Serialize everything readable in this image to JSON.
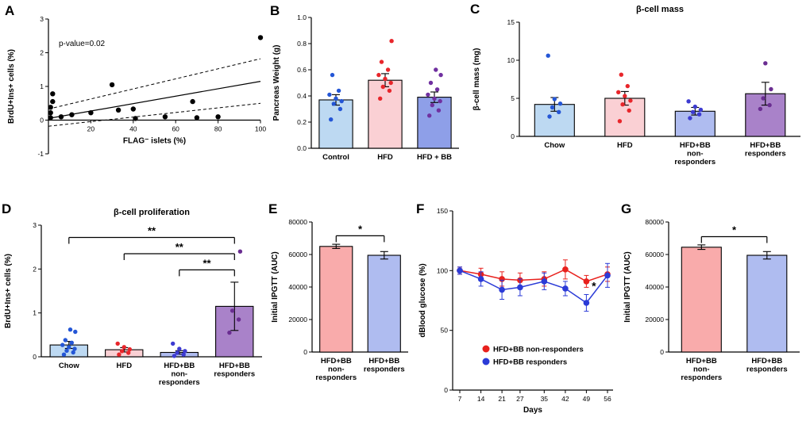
{
  "chart_data": [
    {
      "panel": "A",
      "type": "scatter",
      "xlabel": "FLAG⁻ islets (%)",
      "ylabel": "BrdU+Ins+ cells (%)",
      "annotation": "p-value=0.02",
      "xlim": [
        0,
        100
      ],
      "ylim": [
        -1,
        3
      ],
      "xticks": [
        20,
        40,
        60,
        80,
        100
      ],
      "xtick_labels": [
        "20",
        "40",
        "60",
        "80",
        "100"
      ],
      "yticks": [
        -1,
        0,
        1,
        2,
        3
      ],
      "ytick_labels": [
        "-1",
        "0",
        "1",
        "2",
        "3"
      ],
      "points": [
        [
          1,
          0.07
        ],
        [
          1,
          0.22
        ],
        [
          1,
          0.38
        ],
        [
          2,
          0.55
        ],
        [
          2,
          0.78
        ],
        [
          6,
          0.1
        ],
        [
          11,
          0.16
        ],
        [
          20,
          0.22
        ],
        [
          30,
          1.05
        ],
        [
          33,
          0.3
        ],
        [
          40,
          0.33
        ],
        [
          41,
          0.05
        ],
        [
          55,
          0.1
        ],
        [
          68,
          0.55
        ],
        [
          70,
          0.07
        ],
        [
          80,
          0.1
        ],
        [
          100,
          2.45
        ]
      ],
      "regression": {
        "x": [
          0,
          100
        ],
        "y": [
          0.05,
          1.15
        ]
      },
      "ci_upper": {
        "x": [
          0,
          100
        ],
        "y": [
          0.33,
          1.82
        ]
      },
      "ci_lower": {
        "x": [
          0,
          100
        ],
        "y": [
          -0.18,
          0.5
        ]
      }
    },
    {
      "panel": "B",
      "type": "bar",
      "ylabel": "Pancreas Weight (g)",
      "ylim": [
        0,
        1.0
      ],
      "yticks": [
        0,
        0.2,
        0.4,
        0.6,
        0.8,
        1.0
      ],
      "ytick_labels": [
        "0.0",
        "0.2",
        "0.4",
        "0.6",
        "0.8",
        "1.0"
      ],
      "categories": [
        [
          "Control"
        ],
        [
          "HFD"
        ],
        [
          "HFD + BB"
        ]
      ],
      "values": [
        0.37,
        0.52,
        0.39
      ],
      "errors": [
        0.04,
        0.05,
        0.04
      ],
      "bar_colors": [
        "#BDD9F2",
        "#FAD0D4",
        "#8E9FE8"
      ],
      "dot_colors": [
        "#2456D6",
        "#E8262B",
        "#7030A0"
      ],
      "scatter": [
        [
          0.22,
          0.3,
          0.34,
          0.36,
          0.38,
          0.41,
          0.44,
          0.56
        ],
        [
          0.38,
          0.44,
          0.47,
          0.5,
          0.53,
          0.56,
          0.6,
          0.66,
          0.82
        ],
        [
          0.25,
          0.29,
          0.33,
          0.36,
          0.38,
          0.41,
          0.45,
          0.5,
          0.56,
          0.6
        ]
      ]
    },
    {
      "panel": "C",
      "type": "bar",
      "title": "β-cell mass",
      "ylabel": "β-cell mass (mg)",
      "ylim": [
        0,
        15
      ],
      "yticks": [
        0,
        5,
        10,
        15
      ],
      "ytick_labels": [
        "0",
        "5",
        "10",
        "15"
      ],
      "categories": [
        [
          "Chow"
        ],
        [
          "HFD"
        ],
        [
          "HFD+BB",
          "non-",
          "responders"
        ],
        [
          "HFD+BB",
          "responders"
        ]
      ],
      "values": [
        4.2,
        5.0,
        3.3,
        5.6
      ],
      "errors": [
        0.9,
        0.9,
        0.5,
        1.5
      ],
      "bar_colors": [
        "#BDD9F2",
        "#FAD0D4",
        "#AFBCF0",
        "#A982C9"
      ],
      "dot_colors": [
        "#2456D6",
        "#E8262B",
        "#3D3BD1",
        "#6A2D91"
      ],
      "scatter": [
        [
          2.6,
          3.2,
          3.8,
          4.3,
          4.9,
          10.6
        ],
        [
          2.0,
          3.4,
          4.2,
          4.7,
          5.3,
          5.8,
          6.6,
          8.1
        ],
        [
          2.4,
          2.9,
          3.2,
          3.5,
          3.9,
          4.6
        ],
        [
          3.6,
          4.1,
          5.0,
          6.2,
          9.6
        ]
      ]
    },
    {
      "panel": "D",
      "type": "bar",
      "title": "β-cell proliferation",
      "ylabel": "BrdU+Ins+ cells (%)",
      "ylim": [
        0,
        3
      ],
      "yticks": [
        0,
        1,
        2,
        3
      ],
      "ytick_labels": [
        "0",
        "1",
        "2",
        "3"
      ],
      "categories": [
        [
          "Chow"
        ],
        [
          "HFD"
        ],
        [
          "HFD+BB",
          "non-",
          "responders"
        ],
        [
          "HFD+BB",
          "responders"
        ]
      ],
      "values": [
        0.27,
        0.16,
        0.1,
        1.15
      ],
      "errors": [
        0.08,
        0.05,
        0.04,
        0.55
      ],
      "bar_colors": [
        "#BDD9F2",
        "#FAD0D4",
        "#AFBCF0",
        "#A982C9"
      ],
      "dot_colors": [
        "#2456D6",
        "#E8262B",
        "#3D3BD1",
        "#6A2D91"
      ],
      "scatter": [
        [
          0.05,
          0.1,
          0.14,
          0.18,
          0.22,
          0.27,
          0.32,
          0.38,
          0.57,
          0.62
        ],
        [
          0.05,
          0.09,
          0.13,
          0.17,
          0.22,
          0.3
        ],
        [
          0.02,
          0.05,
          0.09,
          0.13,
          0.18,
          0.3
        ],
        [
          0.55,
          0.85,
          1.05,
          2.4
        ]
      ],
      "sig_brackets": [
        {
          "from": 0,
          "to": 3,
          "label": "**",
          "y": 2.72
        },
        {
          "from": 1,
          "to": 3,
          "label": "**",
          "y": 2.35
        },
        {
          "from": 2,
          "to": 3,
          "label": "**",
          "y": 1.98
        }
      ]
    },
    {
      "panel": "E",
      "type": "bar",
      "ylabel": "Initial IPGTT (AUC)",
      "ylim": [
        0,
        80000
      ],
      "yticks": [
        0,
        20000,
        40000,
        60000,
        80000
      ],
      "ytick_labels": [
        "0",
        "20000",
        "40000",
        "60000",
        "80000"
      ],
      "categories": [
        [
          "HFD+BB",
          "non-",
          "responders"
        ],
        [
          "HFD+BB",
          "responders"
        ]
      ],
      "values": [
        65000,
        59500
      ],
      "errors": [
        1300,
        2300
      ],
      "bar_colors": [
        "#F9ABAB",
        "#AFBCF0"
      ],
      "dot_colors": [],
      "scatter": [
        [],
        []
      ],
      "sig_brackets": [
        {
          "from": 0,
          "to": 1,
          "label": "*",
          "y": 71500
        }
      ]
    },
    {
      "panel": "F",
      "type": "line",
      "xlabel": "Days",
      "ylabel": "dBlood glucose (%)",
      "ylim": [
        0,
        150
      ],
      "yticks": [
        0,
        50,
        100,
        150
      ],
      "ytick_labels": [
        "0",
        "50",
        "100",
        "150"
      ],
      "x": [
        7,
        14,
        21,
        27,
        35,
        42,
        49,
        56
      ],
      "series": [
        {
          "name": "HFD+BB non-responders",
          "color": "#E8211D",
          "values": [
            100,
            97,
            93,
            92,
            93,
            101,
            91,
            97
          ],
          "errors": [
            3,
            5,
            6,
            6,
            6,
            8,
            5,
            6
          ]
        },
        {
          "name": "HFD+BB responders",
          "color": "#2B3BD7",
          "values": [
            100,
            93,
            84,
            86,
            91,
            85,
            73,
            96
          ],
          "errors": [
            3,
            6,
            8,
            7,
            7,
            6,
            7,
            10
          ]
        }
      ],
      "annotation": {
        "label": "*",
        "x": 51.5,
        "y": 84
      }
    },
    {
      "panel": "G",
      "type": "bar",
      "ylabel": "Initial IPGTT (AUC)",
      "ylim": [
        0,
        80000
      ],
      "yticks": [
        0,
        20000,
        40000,
        60000,
        80000
      ],
      "ytick_labels": [
        "0",
        "20000",
        "40000",
        "60000",
        "80000"
      ],
      "categories": [
        [
          "HFD+BB",
          "non-",
          "responders"
        ],
        [
          "HFD+BB",
          "responders"
        ]
      ],
      "values": [
        64500,
        59500
      ],
      "errors": [
        1400,
        2300
      ],
      "bar_colors": [
        "#F9ABAB",
        "#AFBCF0"
      ],
      "dot_colors": [],
      "scatter": [
        [],
        []
      ],
      "sig_brackets": [
        {
          "from": 0,
          "to": 1,
          "label": "*",
          "y": 71000
        }
      ]
    }
  ]
}
